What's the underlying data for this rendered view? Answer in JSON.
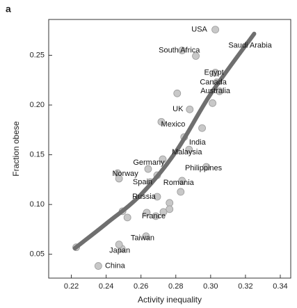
{
  "chart_data": {
    "type": "scatter",
    "panel": "a",
    "x_label": "Activity inequality",
    "y_label": "Fraction obese",
    "xlim": [
      0.207,
      0.346
    ],
    "ylim": [
      0.026,
      0.286
    ],
    "xticks": [
      0.22,
      0.24,
      0.26,
      0.28,
      0.3,
      0.32,
      0.34
    ],
    "xtick_labels_fixed": true,
    "yticks": [
      {
        "value": 0.05,
        "label": "0.05"
      },
      {
        "value": 0.1,
        "label": "0.10"
      },
      {
        "value": 0.15,
        "label": "0.15"
      },
      {
        "value": 0.2,
        "label": "0.20"
      },
      {
        "value": 0.25,
        "label": "0.25"
      }
    ],
    "point_color": "#c8c8c8",
    "x": [
      0.3027,
      0.2836,
      0.2915,
      0.3027,
      0.3035,
      0.3051,
      0.288,
      0.2717,
      0.2848,
      0.2876,
      0.2975,
      0.2641,
      0.2466,
      0.2653,
      0.2836,
      0.2693,
      0.2685,
      0.2629,
      0.249,
      0.2355,
      0.2808,
      0.3011,
      0.2951,
      0.2725,
      0.2474,
      0.2693,
      0.2828,
      0.2764,
      0.2494,
      0.2522,
      0.2633,
      0.2729,
      0.2764,
      0.2474,
      0.2228
    ],
    "y": [
      0.2758,
      0.2549,
      0.2493,
      0.2326,
      0.2228,
      0.2138,
      0.1956,
      0.1831,
      0.1678,
      0.1552,
      0.1378,
      0.1357,
      0.1315,
      0.1225,
      0.1239,
      0.1078,
      0.0883,
      0.0681,
      0.0556,
      0.0382,
      0.2117,
      0.2019,
      0.1768,
      0.1455,
      0.126,
      0.1294,
      0.1127,
      0.1016,
      0.0932,
      0.0869,
      0.0918,
      0.0925,
      0.0953,
      0.0598,
      0.057
    ],
    "labels": [
      "USA",
      "South Africa",
      "Saudi Arabia",
      "Egypt",
      "Canada",
      "Australia",
      "UK",
      "Mexico",
      "India",
      "Malaysia",
      "Philippines",
      "Germany",
      "Norway",
      "Spain",
      "Romania",
      "Russia",
      "France",
      "Taiwan",
      "Japan",
      "China",
      null,
      null,
      null,
      null,
      null,
      null,
      null,
      null,
      null,
      null,
      null,
      null,
      null,
      null,
      null
    ],
    "fit": {
      "color": "#6f6f6f",
      "x": [
        0.222,
        0.24,
        0.26,
        0.28,
        0.3,
        0.325
      ],
      "y": [
        0.056,
        0.0807,
        0.11,
        0.153,
        0.211,
        0.2716
      ]
    }
  }
}
